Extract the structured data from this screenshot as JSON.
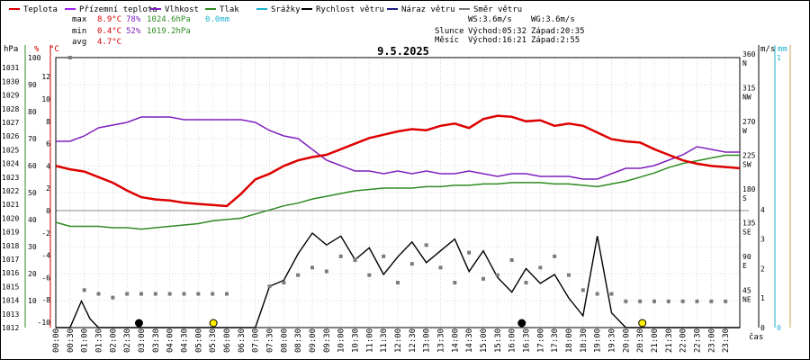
{
  "chart_data": {
    "type": "line",
    "title": "9.5.2025",
    "legend": [
      {
        "name": "Teplota",
        "color": "#dd0000"
      },
      {
        "name": "Přízemní teplota",
        "color": "#a020f0"
      },
      {
        "name": "Vlhkost",
        "color": "#7f1fbf"
      },
      {
        "name": "Tlak",
        "color": "#2e8b22"
      },
      {
        "name": "Srážky",
        "color": "#1fb2d0"
      },
      {
        "name": "Rychlost větru",
        "color": "#000000"
      },
      {
        "name": "Náraz větru",
        "color": "#1c1c8a"
      },
      {
        "name": "Směr větru",
        "color": "#7a7a7a"
      }
    ],
    "stats": {
      "max": {
        "label": "max",
        "temp": "8.9°C",
        "hum": "78%",
        "press": "1024.6hPa",
        "rain": "0.0mm"
      },
      "min": {
        "label": "min",
        "temp": "0.4°C",
        "hum": "52%",
        "press": "1019.2hPa"
      },
      "avg": {
        "label": "avg",
        "temp": "4.7°C"
      }
    },
    "wind_info": {
      "ws": "WS:3.6m/s",
      "wg": "WG:3.6m/s"
    },
    "sun_info": {
      "label": "Slunce",
      "rise": "Východ:05:32",
      "set": "Západ:20:35"
    },
    "moon_info": {
      "label": "Měsíc",
      "rise": "Východ:16:21",
      "set": "Západ:2:55"
    },
    "axes": {
      "pressure": {
        "unit": "hPa",
        "ticks": [
          "1031",
          "1030",
          "1029",
          "1028",
          "1027",
          "1026",
          "1025",
          "1024",
          "1023",
          "1022",
          "1021",
          "1020",
          "1019",
          "1018",
          "1017",
          "1016",
          "1015",
          "1014",
          "1013",
          "1012"
        ]
      },
      "humidity": {
        "unit": "%",
        "ticks": [
          "100",
          "90",
          "80",
          "70",
          "60",
          "50",
          "40",
          "30",
          "20",
          "10"
        ]
      },
      "temperature": {
        "unit": "°C",
        "ticks": [
          "12",
          "10",
          "8",
          "6",
          "4",
          "2",
          "0",
          "-2",
          "-4",
          "-6",
          "-8",
          "-10"
        ]
      },
      "wind_dir": {
        "ticks": [
          {
            "deg": "360",
            "dir": "N"
          },
          {
            "deg": "315",
            "dir": "NW"
          },
          {
            "deg": "270",
            "dir": "W"
          },
          {
            "deg": "225",
            "dir": "SW"
          },
          {
            "deg": "180",
            "dir": "S"
          },
          {
            "deg": "135",
            "dir": "SE"
          },
          {
            "deg": "90",
            "dir": "E"
          },
          {
            "deg": "45",
            "dir": "NE"
          }
        ]
      },
      "wind_speed": {
        "unit": "m/s",
        "ticks": [
          "4",
          "3",
          "2",
          "1",
          "0"
        ]
      },
      "rain": {
        "unit": "mm",
        "ticks": [
          "1",
          "0"
        ]
      },
      "time": {
        "label": "čas",
        "ticks": [
          "00:00",
          "00:30",
          "01:00",
          "01:30",
          "02:00",
          "02:30",
          "03:00",
          "03:30",
          "04:00",
          "04:30",
          "05:00",
          "05:30",
          "06:00",
          "06:30",
          "07:00",
          "07:30",
          "08:00",
          "08:30",
          "09:00",
          "09:30",
          "10:00",
          "10:30",
          "11:00",
          "11:30",
          "12:00",
          "12:30",
          "13:00",
          "13:30",
          "14:00",
          "14:30",
          "15:00",
          "15:30",
          "16:00",
          "16:30",
          "17:00",
          "17:30",
          "18:00",
          "18:30",
          "19:00",
          "19:30",
          "20:00",
          "20:30",
          "21:00",
          "21:30",
          "22:00",
          "22:30",
          "23:00",
          "23:30"
        ]
      }
    },
    "series": [
      {
        "name": "Teplota",
        "unit": "°C",
        "x_hours": [
          0,
          0.5,
          1,
          1.5,
          2,
          2.5,
          3,
          3.5,
          4,
          4.5,
          5,
          5.5,
          6,
          6.5,
          7,
          7.5,
          8,
          8.5,
          9,
          9.5,
          10,
          10.5,
          11,
          11.5,
          12,
          12.5,
          13,
          13.5,
          14,
          14.5,
          15,
          15.5,
          16,
          16.5,
          17,
          17.5,
          18,
          18.5,
          19,
          19.5,
          20,
          20.5,
          21,
          21.5,
          22,
          22.5,
          23,
          23.5,
          24
        ],
        "values": [
          4.0,
          3.7,
          3.5,
          3.0,
          2.5,
          1.8,
          1.2,
          1.0,
          0.9,
          0.7,
          0.6,
          0.5,
          0.4,
          1.5,
          2.8,
          3.3,
          4.0,
          4.5,
          4.8,
          5.0,
          5.5,
          6.0,
          6.5,
          6.8,
          7.1,
          7.3,
          7.2,
          7.6,
          7.8,
          7.4,
          8.2,
          8.5,
          8.4,
          8.0,
          8.1,
          7.6,
          7.8,
          7.6,
          7.0,
          6.4,
          6.2,
          6.1,
          5.5,
          5.0,
          4.5,
          4.2,
          4.0,
          3.9,
          3.8
        ]
      },
      {
        "name": "Vlhkost",
        "unit": "%",
        "x_hours": [
          0,
          0.5,
          1,
          1.5,
          2,
          2.5,
          3,
          3.5,
          4,
          4.5,
          5,
          5.5,
          6,
          6.5,
          7,
          7.5,
          8,
          8.5,
          9,
          9.5,
          10,
          10.5,
          11,
          11.5,
          12,
          12.5,
          13,
          13.5,
          14,
          14.5,
          15,
          15.5,
          16,
          16.5,
          17,
          17.5,
          18,
          18.5,
          19,
          19.5,
          20,
          20.5,
          21,
          21.5,
          22,
          22.5,
          23,
          23.5,
          24
        ],
        "values": [
          69,
          69,
          71,
          74,
          75,
          76,
          78,
          78,
          78,
          77,
          77,
          77,
          77,
          77,
          76,
          73,
          71,
          70,
          66,
          62,
          60,
          58,
          58,
          57,
          58,
          57,
          58,
          57,
          57,
          58,
          57,
          56,
          57,
          57,
          56,
          56,
          56,
          55,
          55,
          57,
          59,
          59,
          60,
          62,
          64,
          67,
          66,
          65,
          65
        ]
      },
      {
        "name": "Tlak",
        "unit": "hPa",
        "x_hours": [
          0,
          0.5,
          1,
          1.5,
          2,
          2.5,
          3,
          3.5,
          4,
          4.5,
          5,
          5.5,
          6,
          6.5,
          7,
          7.5,
          8,
          8.5,
          9,
          9.5,
          10,
          10.5,
          11,
          11.5,
          12,
          12.5,
          13,
          13.5,
          14,
          14.5,
          15,
          15.5,
          16,
          16.5,
          17,
          17.5,
          18,
          18.5,
          19,
          19.5,
          20,
          20.5,
          21,
          21.5,
          22,
          22.5,
          23,
          23.5,
          24
        ],
        "values": [
          1019.7,
          1019.4,
          1019.4,
          1019.4,
          1019.3,
          1019.3,
          1019.2,
          1019.3,
          1019.4,
          1019.5,
          1019.6,
          1019.8,
          1019.9,
          1020.0,
          1020.3,
          1020.6,
          1020.9,
          1021.1,
          1021.4,
          1021.6,
          1021.8,
          1022.0,
          1022.1,
          1022.2,
          1022.2,
          1022.2,
          1022.3,
          1022.3,
          1022.4,
          1022.4,
          1022.5,
          1022.5,
          1022.6,
          1022.6,
          1022.6,
          1022.5,
          1022.5,
          1022.4,
          1022.3,
          1022.5,
          1022.7,
          1023.0,
          1023.3,
          1023.7,
          1024.0,
          1024.2,
          1024.4,
          1024.6,
          1024.6
        ]
      },
      {
        "name": "Rychlost větru",
        "unit": "m/s",
        "x_hours": [
          0,
          0.5,
          0.9,
          1.2,
          1.5,
          2,
          2.5,
          3,
          3.5,
          4,
          4.5,
          5,
          5.5,
          6,
          6.5,
          7,
          7.5,
          8,
          8.5,
          9,
          9.5,
          10,
          10.5,
          11,
          11.5,
          12,
          12.5,
          13,
          13.5,
          14,
          14.5,
          15,
          15.5,
          16,
          16.5,
          17,
          17.5,
          18,
          18.5,
          19,
          19.5,
          20,
          20.5,
          21,
          21.5,
          22,
          22.5,
          23,
          23.5,
          24
        ],
        "values": [
          0,
          0,
          0.9,
          0.3,
          0,
          0,
          0,
          0,
          0,
          0,
          0,
          0,
          0,
          0,
          0,
          0,
          1.4,
          1.6,
          2.5,
          3.2,
          2.8,
          3.1,
          2.3,
          2.7,
          1.8,
          2.4,
          2.9,
          2.2,
          2.6,
          3.0,
          1.9,
          2.6,
          1.7,
          1.2,
          2.0,
          1.5,
          1.8,
          1.0,
          0.4,
          3.1,
          0.5,
          0,
          0,
          0,
          0,
          0,
          0,
          0,
          0,
          0
        ]
      },
      {
        "name": "Směr větru",
        "unit": "°",
        "x_hours": [
          0.5,
          1,
          1.5,
          2,
          2.5,
          3,
          3.5,
          4,
          4.5,
          5,
          5.5,
          6,
          7.5,
          8,
          8.5,
          9,
          9.5,
          10,
          10.5,
          11,
          11.5,
          12,
          12.5,
          13,
          13.5,
          14,
          14.5,
          15,
          15.5,
          16,
          16.5,
          17,
          17.5,
          18,
          18.5,
          19,
          19.5,
          20,
          20.5,
          21,
          21.5,
          22,
          22.5,
          23,
          23.5
        ],
        "values": [
          360,
          50,
          45,
          40,
          45,
          45,
          45,
          45,
          45,
          45,
          45,
          45,
          55,
          60,
          70,
          80,
          75,
          95,
          90,
          70,
          95,
          60,
          85,
          110,
          80,
          60,
          100,
          65,
          70,
          90,
          60,
          80,
          95,
          70,
          50,
          45,
          45,
          35,
          35,
          35,
          35,
          35,
          35,
          35,
          35
        ]
      }
    ],
    "events": [
      {
        "label": "Východ Slunce",
        "time_hours": 5.53,
        "mark": "yellow-circle"
      },
      {
        "label": "Západ Slunce",
        "time_hours": 20.58,
        "mark": "yellow-circle"
      },
      {
        "label": "Západ Měsíce",
        "time_hours": 2.92,
        "mark": "black-circle"
      },
      {
        "label": "Východ Měsíce",
        "time_hours": 16.35,
        "mark": "black-circle"
      }
    ],
    "x_range": [
      0,
      24
    ]
  }
}
